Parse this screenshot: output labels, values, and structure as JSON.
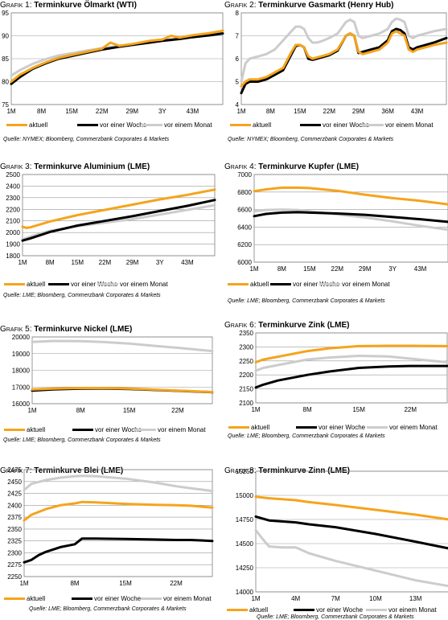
{
  "colors": {
    "aktuell": "#f5a41d",
    "woche": "#000000",
    "monat": "#cccccc",
    "frame": "#808080",
    "grid": "#999999"
  },
  "panels": [
    {
      "prefix": "Grafik 1:",
      "title": "Terminkurve Ölmarkt (WTI)",
      "source": "Quelle: NYMEX; Bloomberg, Commerzbank Corporates & Markets",
      "legend": [
        "aktuell",
        "vor einer Woche",
        "vor einem Monat"
      ]
    },
    {
      "prefix": "Grafik 2:",
      "title": "Terminkurve Gasmarkt (Henry Hub)",
      "source": "Quelle: NYMEX; Bloomberg, Commerzbank Corporates & Markets",
      "legend": [
        "aktuell",
        "vor einer Woche",
        "vor einem Monat"
      ]
    },
    {
      "prefix": "Grafik 3:",
      "title": "Terminkurve Aluminium (LME)",
      "source": "Quelle: LME; Bloomberg, Commerzbank Corporates & Markets",
      "legend": [
        "aktuell",
        "vor einer Woche",
        "vor einem Monat"
      ]
    },
    {
      "prefix": "Grafik 4:",
      "title": "Terminkurve Kupfer (LME)",
      "source": "Quelle: LME; Bloomberg, Commerzbank Corporates & Markets",
      "legend": [
        "aktuell",
        "vor einer Woche",
        "vor einem Monat"
      ]
    },
    {
      "prefix": "Grafik 5:",
      "title": "Terminkurve Nickel (LME)",
      "source": "Quelle: LME; Bloomberg, Commerzbank Corporates & Markets",
      "legend": [
        "aktuell",
        "vor einer Woche",
        "vor einem Monat"
      ]
    },
    {
      "prefix": "Grafik 6:",
      "title": "Terminkurve Zink (LME)",
      "source": "Quelle: LME; Bloomberg, Commerzbank Corporates & Markets",
      "legend": [
        "aktuell",
        "vor einer Woche",
        "vor einem Monat"
      ]
    },
    {
      "prefix": "Grafik 7:",
      "title": "Terminkurve Blei (LME)",
      "source": "Quelle: LME; Bloomberg, Commerzbank Corporates & Markets",
      "legend": [
        "aktuell",
        "vor einer Woche",
        "vor einem Monat"
      ]
    },
    {
      "prefix": "Grafik 8:",
      "title": "Terminkurve Zinn (LME)",
      "source": "Quelle: LME; Bloomberg, Commerzbank Corporates & Markets",
      "legend": [
        "aktuell",
        "vor einer Woche",
        "vor einem Monat"
      ]
    }
  ],
  "chart_data": [
    {
      "type": "line",
      "title": "Terminkurve Ölmarkt (WTI)",
      "x_ticks": [
        "1M",
        "8M",
        "15M",
        "22M",
        "29M",
        "3Y",
        "43M"
      ],
      "xlim": [
        1,
        50
      ],
      "y_ticks": [
        75,
        80,
        85,
        90,
        95
      ],
      "ylim": [
        75,
        95
      ],
      "series": [
        {
          "name": "aktuell",
          "x": [
            1,
            3,
            6,
            9,
            12,
            15,
            18,
            22,
            24,
            26,
            29,
            33,
            36,
            38,
            40,
            43,
            47,
            50
          ],
          "y": [
            80,
            81.5,
            83,
            84.2,
            85.2,
            85.8,
            86.4,
            87.2,
            88.5,
            87.8,
            88.2,
            88.9,
            89.2,
            90,
            89.6,
            90.1,
            90.6,
            91.1
          ]
        },
        {
          "name": "vor einer Woche",
          "x": [
            1,
            3,
            6,
            9,
            12,
            15,
            18,
            22,
            26,
            29,
            33,
            36,
            40,
            43,
            47,
            50
          ],
          "y": [
            79.5,
            81,
            82.8,
            84,
            85,
            85.6,
            86.2,
            87,
            87.6,
            88,
            88.5,
            88.9,
            89.3,
            89.7,
            90.1,
            90.5
          ]
        },
        {
          "name": "vor einem Monat",
          "x": [
            1,
            3,
            6,
            9,
            12,
            15,
            18,
            22,
            26,
            29,
            33,
            36,
            40,
            43,
            47,
            50
          ],
          "y": [
            81.3,
            82.5,
            83.9,
            84.9,
            85.7,
            86.2,
            86.7,
            87.3,
            87.8,
            88.2,
            88.6,
            89,
            89.4,
            89.8,
            90.2,
            90.6
          ]
        }
      ]
    },
    {
      "type": "line",
      "title": "Terminkurve Gasmarkt (Henry Hub)",
      "x_ticks": [
        "1M",
        "8M",
        "15M",
        "22M",
        "29M",
        "36M",
        "43M"
      ],
      "xlim": [
        1,
        50
      ],
      "y_ticks": [
        4,
        5,
        6,
        7,
        8
      ],
      "ylim": [
        4,
        8
      ],
      "series": [
        {
          "name": "aktuell",
          "x": [
            1,
            2,
            3,
            5,
            7,
            9,
            11,
            13,
            14,
            15,
            16,
            17,
            18,
            19,
            20,
            22,
            24,
            26,
            27,
            28,
            29,
            30,
            32,
            34,
            36,
            37,
            38,
            39,
            40,
            41,
            42,
            43,
            45,
            47,
            50
          ],
          "y": [
            4.8,
            5.0,
            5.1,
            5.1,
            5.2,
            5.4,
            5.6,
            6.3,
            6.6,
            6.6,
            6.5,
            6.1,
            6.0,
            6.05,
            6.1,
            6.2,
            6.4,
            7.0,
            7.1,
            7.0,
            6.3,
            6.2,
            6.3,
            6.4,
            6.7,
            7.1,
            7.2,
            7.1,
            7.0,
            6.4,
            6.3,
            6.4,
            6.5,
            6.6,
            6.7
          ]
        },
        {
          "name": "vor einer Woche",
          "x": [
            1,
            2,
            3,
            5,
            7,
            9,
            11,
            13,
            14,
            15,
            16,
            17,
            18,
            19,
            20,
            22,
            24,
            26,
            27,
            28,
            29,
            30,
            32,
            34,
            36,
            37,
            38,
            39,
            40,
            41,
            42,
            43,
            45,
            47,
            50
          ],
          "y": [
            4.5,
            4.9,
            5.0,
            5.0,
            5.1,
            5.3,
            5.5,
            6.2,
            6.55,
            6.6,
            6.5,
            6.0,
            5.95,
            6.0,
            6.05,
            6.15,
            6.35,
            7.0,
            7.1,
            7.0,
            6.25,
            6.3,
            6.4,
            6.5,
            6.8,
            7.2,
            7.3,
            7.25,
            7.1,
            6.5,
            6.4,
            6.5,
            6.6,
            6.7,
            6.9
          ]
        },
        {
          "name": "vor einem Monat",
          "x": [
            1,
            2,
            3,
            5,
            7,
            9,
            11,
            13,
            14,
            15,
            16,
            17,
            18,
            19,
            20,
            22,
            24,
            26,
            27,
            28,
            29,
            30,
            32,
            34,
            36,
            37,
            38,
            39,
            40,
            41,
            42,
            43,
            45,
            47,
            50
          ],
          "y": [
            5.0,
            5.8,
            6.0,
            6.1,
            6.2,
            6.4,
            6.8,
            7.2,
            7.4,
            7.4,
            7.3,
            6.9,
            6.7,
            6.7,
            6.75,
            6.9,
            7.1,
            7.6,
            7.7,
            7.6,
            7.0,
            6.9,
            7.0,
            7.1,
            7.3,
            7.6,
            7.75,
            7.7,
            7.6,
            7.0,
            6.9,
            7.0,
            7.1,
            7.2,
            7.3
          ]
        }
      ]
    },
    {
      "type": "line",
      "title": "Terminkurve Aluminium (LME)",
      "x_ticks": [
        "1M",
        "8M",
        "15M",
        "22M",
        "29M",
        "3Y",
        "43M"
      ],
      "xlim": [
        1,
        50
      ],
      "y_ticks": [
        1800,
        1900,
        2000,
        2100,
        2200,
        2300,
        2400,
        2500
      ],
      "ylim": [
        1800,
        2500
      ],
      "series": [
        {
          "name": "aktuell",
          "x": [
            1,
            2,
            3,
            8,
            15,
            22,
            29,
            36,
            43,
            50
          ],
          "y": [
            2050,
            2040,
            2045,
            2095,
            2150,
            2195,
            2240,
            2285,
            2325,
            2370
          ]
        },
        {
          "name": "vor einer Woche",
          "x": [
            1,
            3,
            8,
            15,
            22,
            29,
            36,
            43,
            50
          ],
          "y": [
            1930,
            1950,
            2005,
            2060,
            2100,
            2140,
            2185,
            2230,
            2280
          ]
        },
        {
          "name": "vor einem Monat",
          "x": [
            1,
            3,
            8,
            15,
            22,
            29,
            36,
            43,
            50
          ],
          "y": [
            1940,
            1965,
            2015,
            2055,
            2085,
            2115,
            2155,
            2195,
            2235
          ]
        }
      ]
    },
    {
      "type": "line",
      "title": "Terminkurve Kupfer (LME)",
      "x_ticks": [
        "1M",
        "8M",
        "15M",
        "22M",
        "29M",
        "3Y",
        "43M"
      ],
      "xlim": [
        1,
        50
      ],
      "y_ticks": [
        6000,
        6200,
        6400,
        6600,
        6800,
        7000
      ],
      "ylim": [
        6000,
        7000
      ],
      "series": [
        {
          "name": "aktuell",
          "x": [
            1,
            4,
            8,
            12,
            15,
            22,
            29,
            36,
            43,
            50
          ],
          "y": [
            6810,
            6830,
            6850,
            6850,
            6845,
            6815,
            6770,
            6730,
            6700,
            6660
          ]
        },
        {
          "name": "vor einer Woche",
          "x": [
            1,
            4,
            8,
            12,
            15,
            22,
            29,
            36,
            43,
            50
          ],
          "y": [
            6525,
            6550,
            6565,
            6570,
            6565,
            6555,
            6540,
            6515,
            6490,
            6460
          ]
        },
        {
          "name": "vor einem Monat",
          "x": [
            1,
            4,
            8,
            12,
            15,
            22,
            29,
            36,
            43,
            50
          ],
          "y": [
            6580,
            6595,
            6600,
            6595,
            6580,
            6545,
            6510,
            6465,
            6415,
            6370
          ]
        }
      ]
    },
    {
      "type": "line",
      "title": "Terminkurve Nickel (LME)",
      "x_ticks": [
        "1M",
        "8M",
        "15M",
        "22M"
      ],
      "xlim": [
        1,
        27
      ],
      "y_ticks": [
        16000,
        17000,
        18000,
        19000,
        20000
      ],
      "ylim": [
        16000,
        20000
      ],
      "series": [
        {
          "name": "aktuell",
          "x": [
            1,
            4,
            8,
            11,
            15,
            19,
            22,
            27
          ],
          "y": [
            16850,
            16900,
            16940,
            16940,
            16900,
            16840,
            16780,
            16700
          ]
        },
        {
          "name": "vor einer Woche",
          "x": [
            1,
            4,
            8,
            11,
            15,
            19,
            22,
            27
          ],
          "y": [
            16780,
            16860,
            16900,
            16910,
            16880,
            16820,
            16770,
            16690
          ]
        },
        {
          "name": "vor einem Monat",
          "x": [
            1,
            4,
            8,
            11,
            15,
            19,
            22,
            27
          ],
          "y": [
            19700,
            19760,
            19750,
            19700,
            19600,
            19450,
            19350,
            19150
          ]
        }
      ]
    },
    {
      "type": "line",
      "title": "Terminkurve Zink (LME)",
      "x_ticks": [
        "1M",
        "8M",
        "15M",
        "22M"
      ],
      "xlim": [
        1,
        27
      ],
      "y_ticks": [
        2100,
        2150,
        2200,
        2250,
        2300,
        2350
      ],
      "ylim": [
        2100,
        2350
      ],
      "series": [
        {
          "name": "aktuell",
          "x": [
            1,
            2,
            4,
            6,
            8,
            11,
            15,
            19,
            22,
            27
          ],
          "y": [
            2245,
            2255,
            2265,
            2275,
            2285,
            2295,
            2303,
            2304,
            2304,
            2303
          ]
        },
        {
          "name": "vor einer Woche",
          "x": [
            1,
            2,
            4,
            6,
            8,
            11,
            15,
            19,
            22,
            27
          ],
          "y": [
            2155,
            2165,
            2180,
            2190,
            2200,
            2212,
            2225,
            2230,
            2232,
            2232
          ]
        },
        {
          "name": "vor einem Monat",
          "x": [
            1,
            2,
            4,
            6,
            8,
            11,
            15,
            19,
            22,
            27
          ],
          "y": [
            2215,
            2225,
            2235,
            2245,
            2255,
            2262,
            2268,
            2266,
            2258,
            2245
          ]
        }
      ]
    },
    {
      "type": "line",
      "title": "Terminkurve Blei (LME)",
      "x_ticks": [
        "1M",
        "8M",
        "15M",
        "22M"
      ],
      "xlim": [
        1,
        27
      ],
      "y_ticks": [
        2250,
        2275,
        2300,
        2325,
        2350,
        2375,
        2400,
        2425,
        2450,
        2475
      ],
      "ylim": [
        2250,
        2475
      ],
      "series": [
        {
          "name": "aktuell",
          "x": [
            1,
            2,
            4,
            6,
            8,
            9,
            11,
            15,
            19,
            22,
            24,
            27
          ],
          "y": [
            2368,
            2380,
            2392,
            2400,
            2404,
            2407,
            2406,
            2403,
            2401,
            2400,
            2399,
            2395
          ]
        },
        {
          "name": "vor einer Woche",
          "x": [
            1,
            2,
            3,
            4,
            6,
            8,
            9,
            11,
            15,
            19,
            22,
            24,
            27
          ],
          "y": [
            2280,
            2285,
            2295,
            2302,
            2312,
            2318,
            2330,
            2330,
            2329,
            2328,
            2327,
            2327,
            2325
          ]
        },
        {
          "name": "vor einem Monat",
          "x": [
            1,
            2,
            4,
            6,
            8,
            9,
            11,
            15,
            19,
            22,
            24,
            27
          ],
          "y": [
            2432,
            2445,
            2453,
            2458,
            2461,
            2462,
            2461,
            2456,
            2448,
            2440,
            2436,
            2430
          ]
        }
      ]
    },
    {
      "type": "line",
      "title": "Terminkurve Zinn (LME)",
      "x_ticks": [
        "1M",
        "4M",
        "7M",
        "10M",
        "13M"
      ],
      "xlim": [
        1,
        15.5
      ],
      "y_ticks": [
        14000,
        14250,
        14500,
        14750,
        15000,
        15250
      ],
      "ylim": [
        14000,
        15250
      ],
      "series": [
        {
          "name": "aktuell",
          "x": [
            1,
            2,
            4,
            5,
            7,
            10,
            13,
            15.5
          ],
          "y": [
            14985,
            14970,
            14950,
            14930,
            14900,
            14850,
            14800,
            14750
          ]
        },
        {
          "name": "vor einer Woche",
          "x": [
            1,
            2,
            4,
            5,
            7,
            10,
            13,
            15.5
          ],
          "y": [
            14780,
            14740,
            14720,
            14700,
            14670,
            14600,
            14520,
            14450
          ]
        },
        {
          "name": "vor einem Monat",
          "x": [
            1,
            1.5,
            2,
            3,
            4,
            5,
            7,
            10,
            13,
            15.5
          ],
          "y": [
            14640,
            14550,
            14470,
            14460,
            14460,
            14400,
            14320,
            14220,
            14120,
            14060
          ]
        }
      ]
    }
  ]
}
